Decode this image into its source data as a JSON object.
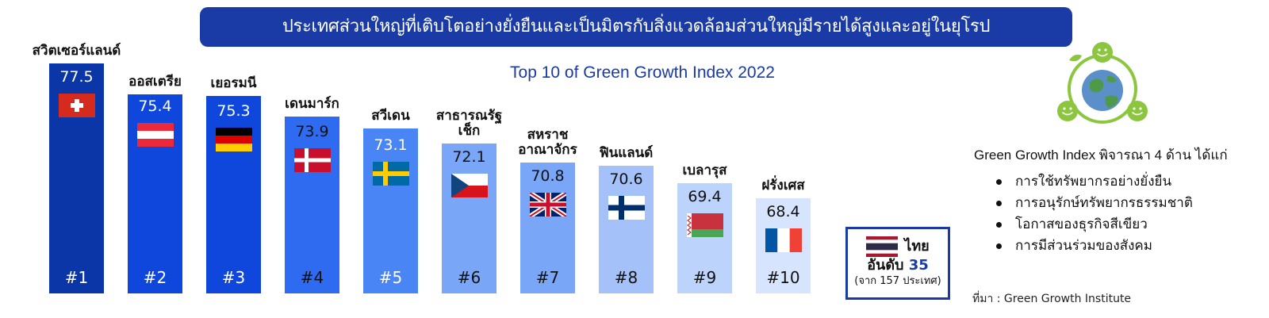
{
  "banner": {
    "text": "ประเทศส่วนใหญ่ที่เติบโตอย่างยั่งยืนและเป็นมิตรกับสิ่งแวดล้อมส่วนใหญ่มีรายได้สูงและอยู่ในยุโรป"
  },
  "chart_data": {
    "type": "bar",
    "title": "Top 10 of Green Growth Index 2022",
    "categories": [
      "สวิตเซอร์แลนด์",
      "ออสเตรีย",
      "เยอรมนี",
      "เดนมาร์ก",
      "สวีเดน",
      "สาธารณรัฐเช็ก",
      "สหราชอาณาจักร",
      "ฟินแลนด์",
      "เบลารุส",
      "ฝรั่งเศส"
    ],
    "category_lines": [
      [
        "สวิตเซอร์แลนด์"
      ],
      [
        "ออสเตรีย"
      ],
      [
        "เยอรมนี"
      ],
      [
        "เดนมาร์ก"
      ],
      [
        "สวีเดน"
      ],
      [
        "สาธารณรัฐ",
        "เช็ก"
      ],
      [
        "สหราช",
        "อาณาจักร"
      ],
      [
        "ฟินแลนด์"
      ],
      [
        "เบลารุส"
      ],
      [
        "ฝรั่งเศส"
      ]
    ],
    "values": [
      77.5,
      75.4,
      75.3,
      73.9,
      73.1,
      72.1,
      70.8,
      70.6,
      69.4,
      68.4
    ],
    "value_labels": [
      "77.5",
      "75.4",
      "75.3",
      "73.9",
      "73.1",
      "72.1",
      "70.8",
      "70.6",
      "69.4",
      "68.4"
    ],
    "ranks": [
      "#1",
      "#2",
      "#3",
      "#4",
      "#5",
      "#6",
      "#7",
      "#8",
      "#9",
      "#10"
    ],
    "flags": [
      "switzerland-flag",
      "austria-flag",
      "germany-flag",
      "denmark-flag",
      "sweden-flag",
      "czech-flag",
      "uk-flag",
      "finland-flag",
      "belarus-flag",
      "france-flag"
    ],
    "bar_colors": [
      "#0b36a8",
      "#0f47dd",
      "#0f47dd",
      "#2e6bf0",
      "#4a85f5",
      "#7aa6f7",
      "#7aa6f7",
      "#a4c2f9",
      "#bcd3fb",
      "#d6e4fd"
    ],
    "text_colors": [
      "#ffffff",
      "#ffffff",
      "#ffffff",
      "#111111",
      "#ffffff",
      "#111111",
      "#111111",
      "#111111",
      "#111111",
      "#111111"
    ],
    "xlabel": "",
    "ylabel": ""
  },
  "thailand": {
    "name": "ไทย",
    "rank_prefix": "อันดับ",
    "rank": "35",
    "note": "(จาก 157 ประเทศ)"
  },
  "info": {
    "title": "Green Growth Index พิจารณา 4 ด้าน ได้แก่",
    "items": [
      "การใช้ทรัพยากรอย่างยั่งยืน",
      "การอนุรักษ์ทรัพยากรธรรมชาติ",
      "โอกาสของธุรกิจสีเขียว",
      "การมีส่วนร่วมของสังคม"
    ]
  },
  "source": "ที่มา : Green Growth Institute",
  "colors": {
    "accent": "#1a3aa6",
    "logo_green": "#8cc63f",
    "globe_blue": "#5b8fc9",
    "globe_green": "#4f9a4a"
  }
}
